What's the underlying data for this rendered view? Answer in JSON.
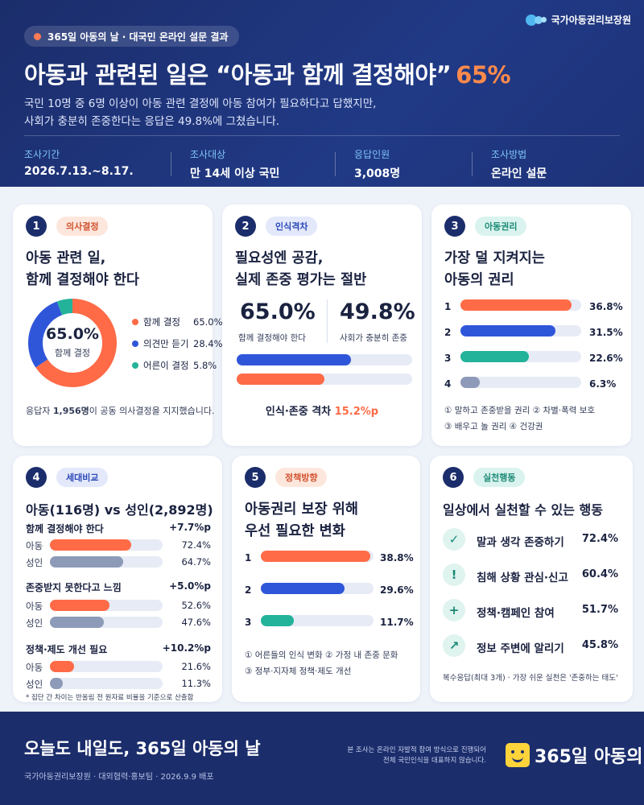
{
  "header": {
    "badge": "365일 아동의 날 · 대국민 온라인 설문 결과",
    "org": "국가아동권리보장원",
    "headline": "아동과 관련된 일은 “아동과 함께 결정해야”",
    "headline_pct": "65%",
    "lede_1": "국민 10명 중 6명 이상이 아동 관련 결정에 아동 참여가 필요하다고 답했지만,",
    "lede_2": "사회가 충분히 존중한다는 응답은 49.8%에 그쳤습니다.",
    "meta": [
      {
        "key": "조사기간",
        "value": "2026.7.13.~8.17."
      },
      {
        "key": "조사대상",
        "value": "만 14세 이상 국민"
      },
      {
        "key": "응답인원",
        "value": "3,008명"
      },
      {
        "key": "조사방법",
        "value": "온라인 설문"
      }
    ]
  },
  "colors": {
    "orange": "#ff6b47",
    "blue": "#2f56d9",
    "teal": "#23b39a",
    "gray": "#8d9ab8"
  },
  "card1": {
    "num": "1",
    "tag": "의사결정",
    "title_1": "아동 관련 일,",
    "title_2": "함께 결정해야 한다",
    "center_pct": "65.0%",
    "center_label": "함께 결정",
    "legend": [
      {
        "label": "함께 결정",
        "value": "65.0%"
      },
      {
        "label": "의견만 듣기",
        "value": "28.4%"
      },
      {
        "label": "어른이 결정",
        "value": "5.8%"
      }
    ],
    "note_pre": "응답자 ",
    "note_bold": "1,956명",
    "note_post": "이 공동 의사결정을 지지했습니다."
  },
  "card2": {
    "num": "2",
    "tag": "인식격차",
    "title_1": "필요성엔 공감,",
    "title_2": "실제 존중 평가는 절반",
    "left_pct": "65.0%",
    "left_cap": "함께 결정해야 한다",
    "right_pct": "49.8%",
    "right_cap": "사회가 충분히 존중",
    "gap_label": "인식·존중 격차",
    "gap_value": "15.2%p"
  },
  "card3": {
    "num": "3",
    "tag": "아동권리",
    "title_1": "가장 덜 지켜지는",
    "title_2": "아동의 권리",
    "ranks": [
      {
        "label": "1",
        "value": "36.8%"
      },
      {
        "label": "2",
        "value": "31.5%"
      },
      {
        "label": "3",
        "value": "22.6%"
      },
      {
        "label": "4",
        "value": "6.3%"
      }
    ],
    "legend_1": "① 말하고 존중받을 권리  ② 차별·폭력 보호",
    "legend_2": "③ 배우고 놀 권리  ④ 건강권"
  },
  "card4": {
    "num": "4",
    "tag": "세대비교",
    "title": "아동(116명) vs 성인(2,892명)",
    "groups": [
      {
        "title": "함께 결정해야 한다",
        "delta": "+7.7%p",
        "rows": [
          {
            "label": "아동",
            "value": "72.4%"
          },
          {
            "label": "성인",
            "value": "64.7%"
          }
        ]
      },
      {
        "title": "존중받지 못한다고 느낌",
        "delta": "+5.0%p",
        "rows": [
          {
            "label": "아동",
            "value": "52.6%"
          },
          {
            "label": "성인",
            "value": "47.6%"
          }
        ]
      },
      {
        "title": "정책·제도 개선 필요",
        "delta": "+10.2%p",
        "rows": [
          {
            "label": "아동",
            "value": "21.6%"
          },
          {
            "label": "성인",
            "value": "11.3%"
          }
        ]
      }
    ],
    "footnote": "* 집단 간 차이는 반올림 전 원자료 비율을 기준으로 산출함"
  },
  "card5": {
    "num": "5",
    "tag": "정책방향",
    "title_1": "아동권리 보장 위해",
    "title_2": "우선 필요한 변화",
    "ranks": [
      {
        "label": "1",
        "value": "38.8%"
      },
      {
        "label": "2",
        "value": "29.6%"
      },
      {
        "label": "3",
        "value": "11.7%"
      }
    ],
    "legend_1": "① 어른들의 인식 변화  ② 가정 내 존중 문화",
    "legend_2": "③ 정부·지자체 정책·제도 개선"
  },
  "card6": {
    "num": "6",
    "tag": "실천행동",
    "title": "일상에서 실천할 수 있는 행동",
    "actions": [
      {
        "icon": "✓",
        "label": "말과 생각 존중하기",
        "value": "72.4%"
      },
      {
        "icon": "!",
        "label": "침해 상황 관심·신고",
        "value": "60.4%"
      },
      {
        "icon": "+",
        "label": "정책·캠페인 참여",
        "value": "51.7%"
      },
      {
        "icon": "↗",
        "label": "정보 주변에 알리기",
        "value": "45.8%"
      }
    ],
    "note": "복수응답(최대 3개) · 가장 쉬운 실천은 '존중하는 태도'"
  },
  "footer": {
    "title": "오늘도 내일도, 365일 아동의 날",
    "sub": "국가아동권리보장원 · 대외협력·홍보팀 · 2026.9.9 배포",
    "note_1": "본 조사는 온라인 자발적 참여 방식으로 진행되어",
    "note_2": "전체 국민인식을 대표하지 않습니다.",
    "brand": "365일 아동의 날"
  },
  "chart_data": [
    {
      "type": "pie",
      "categories": [
        "함께 결정",
        "의견만 듣기",
        "어른이 결정"
      ],
      "values": [
        65.0,
        28.4,
        5.8
      ]
    },
    {
      "type": "bar",
      "categories": [
        "함께 결정해야 한다",
        "사회가 충분히 존중"
      ],
      "values": [
        65.0,
        49.8
      ]
    },
    {
      "type": "bar",
      "categories": [
        "1",
        "2",
        "3",
        "4"
      ],
      "values": [
        36.8,
        31.5,
        22.6,
        6.3
      ]
    },
    {
      "type": "bar",
      "categories": [
        "함께 결정해야 한다",
        "존중받지 못한다고 느낌",
        "정책·제도 개선 필요"
      ],
      "series": [
        {
          "name": "아동",
          "values": [
            72.4,
            52.6,
            21.6
          ]
        },
        {
          "name": "성인",
          "values": [
            64.7,
            47.6,
            11.3
          ]
        }
      ]
    },
    {
      "type": "bar",
      "categories": [
        "1",
        "2",
        "3"
      ],
      "values": [
        38.8,
        29.6,
        11.7
      ]
    }
  ]
}
